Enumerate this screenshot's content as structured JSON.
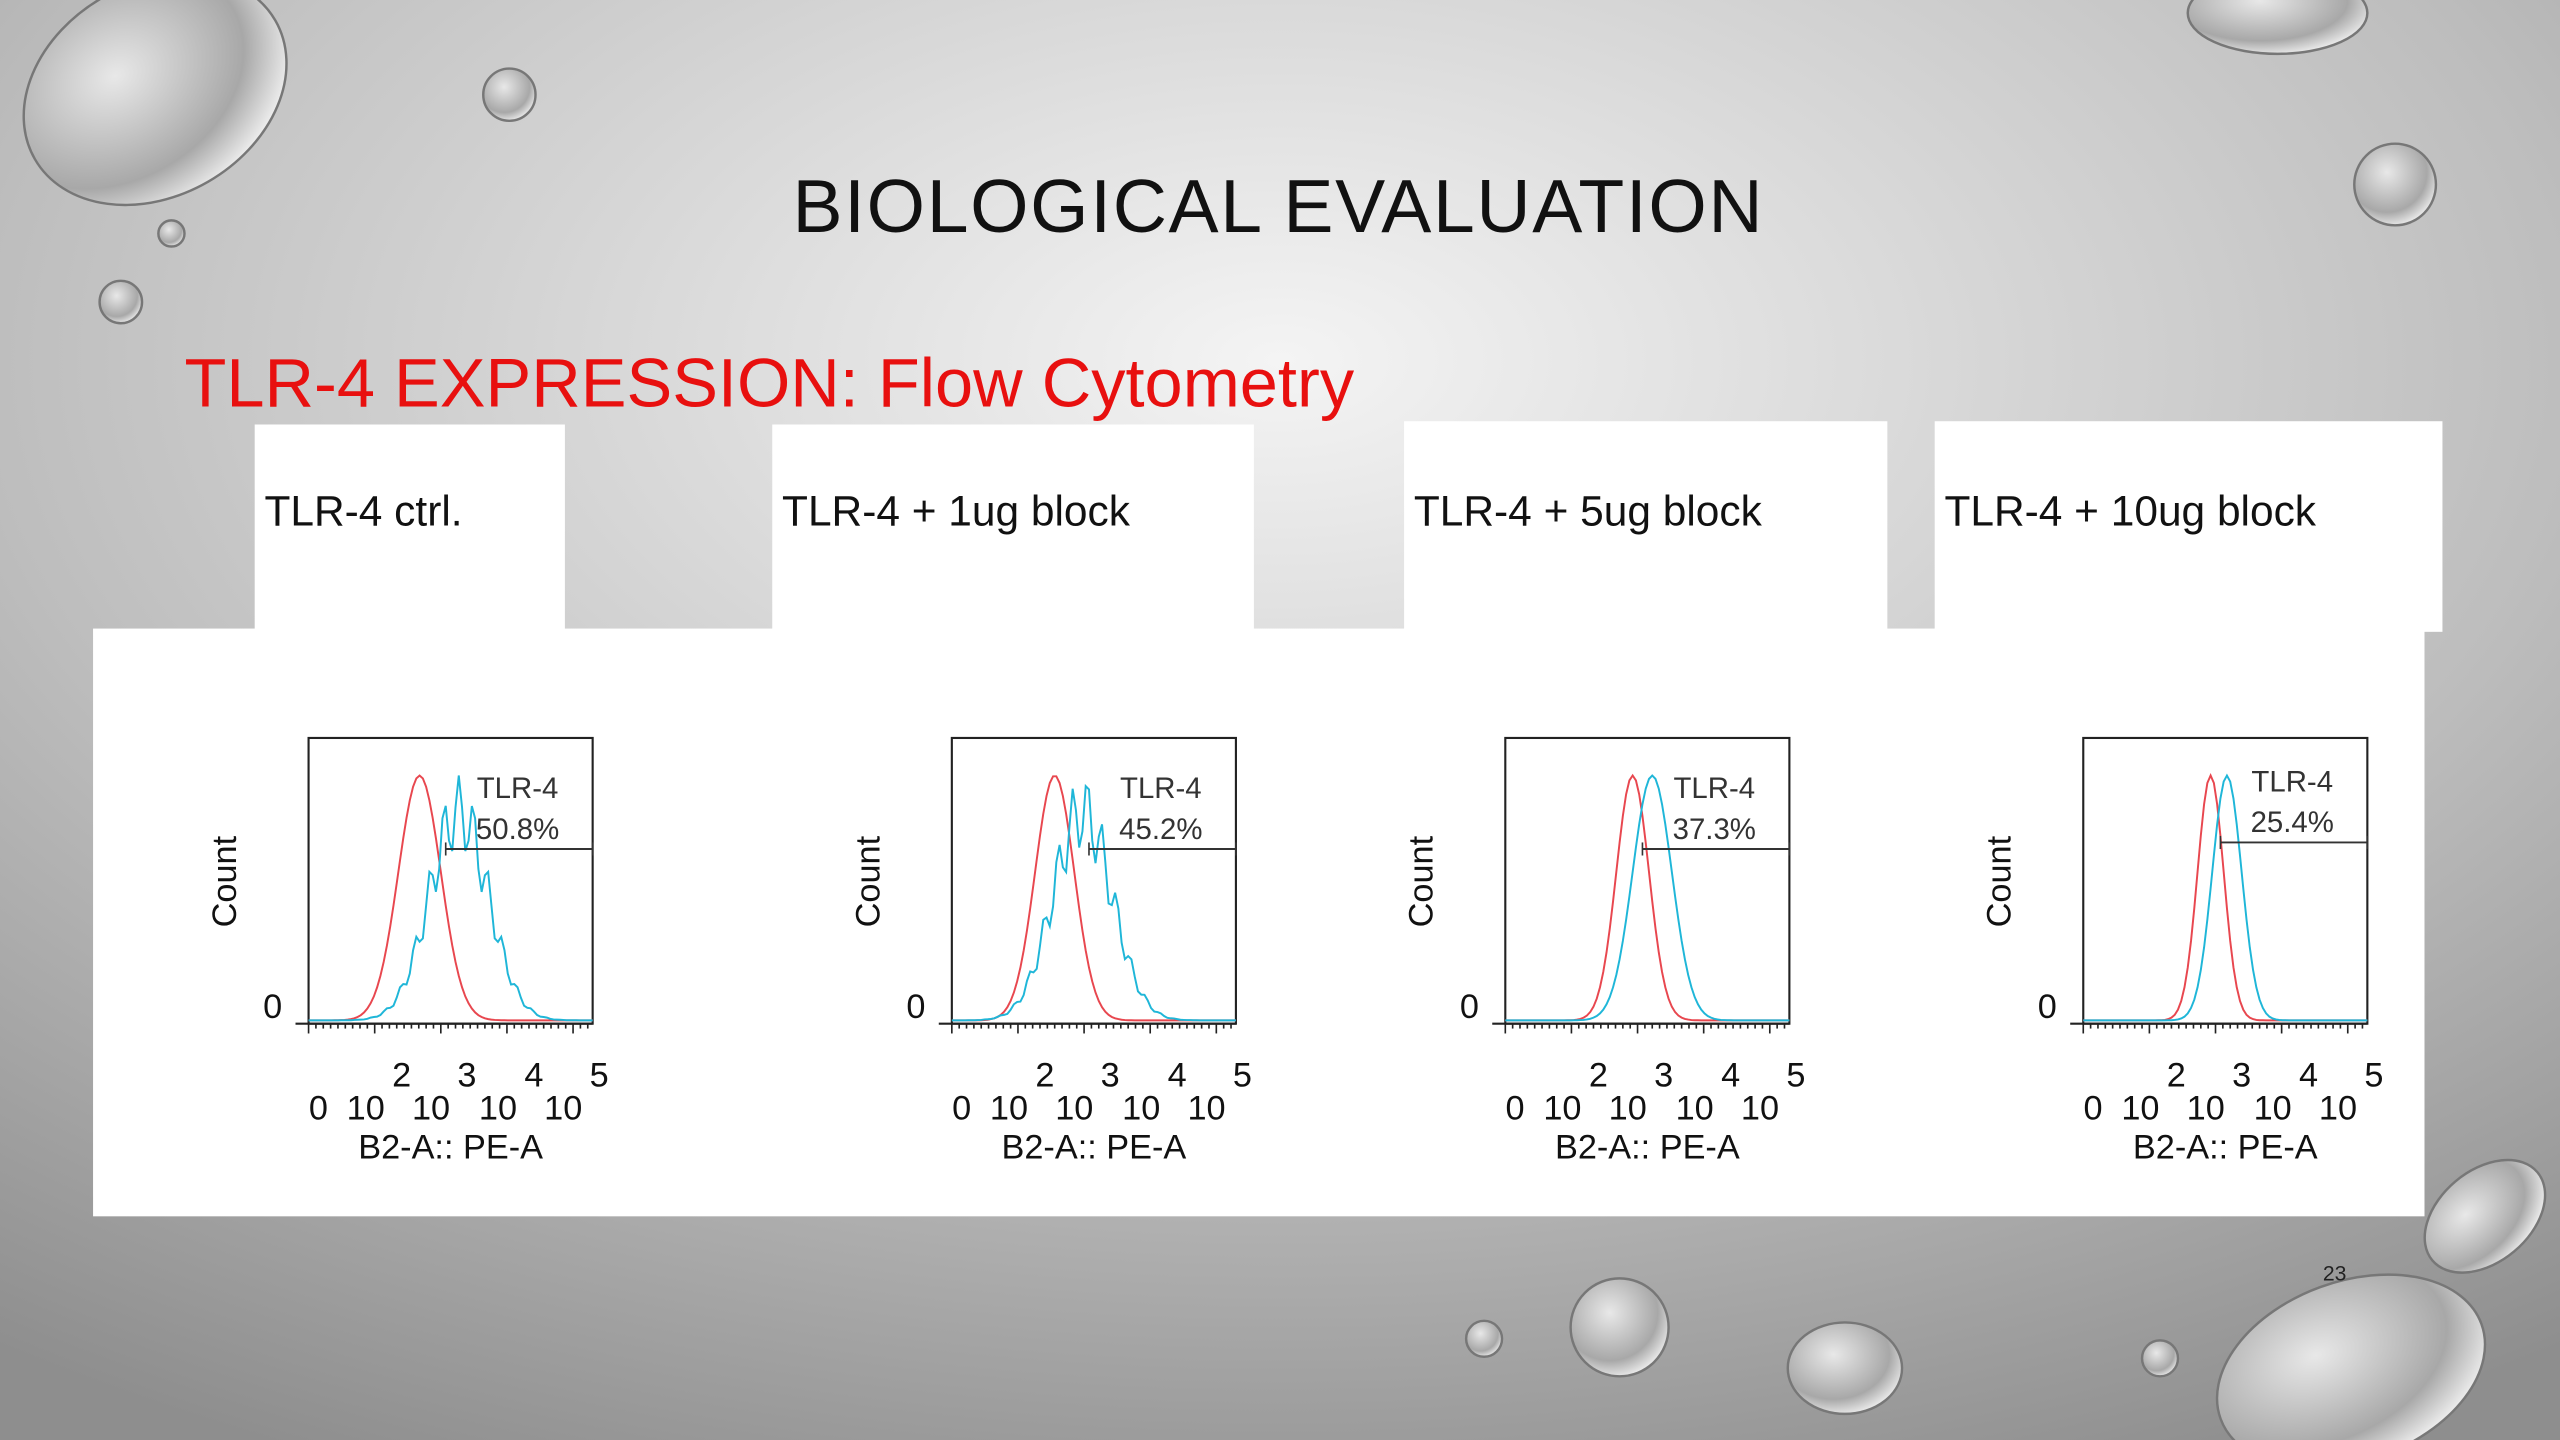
{
  "title": "BIOLOGICAL EVALUATION",
  "subtitle": "TLR-4 EXPRESSION: Flow Cytometry",
  "y_label": "Count",
  "y_tick": "0",
  "x_label": "B2-A:: PE-A",
  "x_ticks": [
    {
      "base": "0"
    },
    {
      "base": "10",
      "exp": "2"
    },
    {
      "base": "10",
      "exp": "3"
    },
    {
      "base": "10",
      "exp": "4"
    },
    {
      "base": "10",
      "exp": "5"
    }
  ],
  "gate_label": "TLR-4",
  "panels": [
    {
      "label": "TLR-4 ctrl.",
      "percent": "50.8%"
    },
    {
      "label": "TLR-4 + 1ug block",
      "percent": "45.2%"
    },
    {
      "label": "TLR-4 + 5ug block",
      "percent": "37.3%"
    },
    {
      "label": "TLR-4 + 10ug block",
      "percent": "25.4%"
    }
  ],
  "page_number": "23"
}
